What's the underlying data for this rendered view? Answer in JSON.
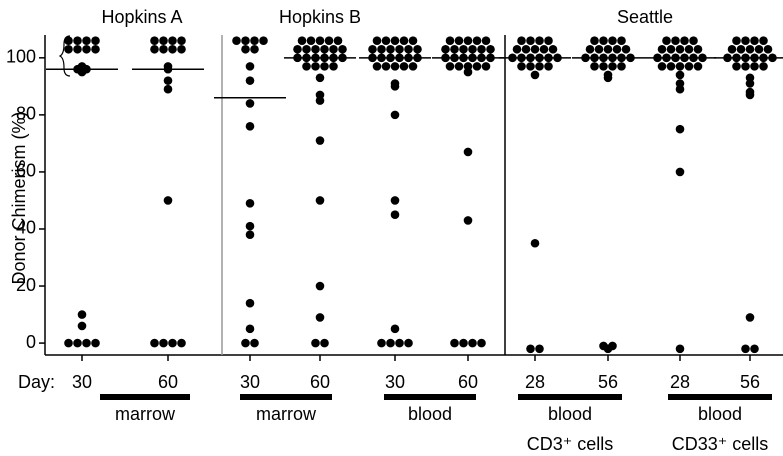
{
  "chart_data": {
    "type": "dot",
    "y_label": "Donor Chimerism (%)",
    "x_label": "Day:",
    "ylim": [
      -4,
      108
    ],
    "yticks": [
      0,
      20,
      40,
      60,
      80,
      100
    ],
    "color": "#000000",
    "groups": [
      {
        "name": "Hopkins A",
        "columns": [
          {
            "day": "30",
            "median": 96,
            "values": [
              106,
              106,
              106,
              106,
              103,
              103,
              103,
              103,
              97,
              96,
              96,
              95,
              10,
              6,
              0,
              0,
              0,
              0
            ]
          },
          {
            "day": "60",
            "median": 96,
            "values": [
              106,
              106,
              106,
              106,
              103,
              103,
              103,
              103,
              97,
              96,
              92,
              89,
              50,
              0,
              0,
              0,
              0
            ]
          }
        ]
      },
      {
        "name": "Hopkins B",
        "columns": [
          {
            "day": "30",
            "median": 86,
            "values": [
              106,
              106,
              106,
              106,
              103,
              103,
              97,
              92,
              84,
              76,
              49,
              41,
              38,
              14,
              5,
              0,
              0
            ]
          },
          {
            "day": "60",
            "median": 100,
            "values": [
              106,
              106,
              106,
              106,
              106,
              103,
              103,
              103,
              103,
              103,
              103,
              100,
              100,
              100,
              100,
              100,
              100,
              97,
              97,
              97,
              97,
              93,
              87,
              85,
              71,
              50,
              20,
              9,
              0,
              0
            ]
          },
          {
            "day": "30",
            "median": 100,
            "values": [
              106,
              106,
              106,
              106,
              106,
              103,
              103,
              103,
              103,
              103,
              103,
              100,
              100,
              100,
              100,
              100,
              100,
              97,
              97,
              97,
              97,
              97,
              91,
              90,
              80,
              50,
              45,
              5,
              0,
              0,
              0,
              0
            ]
          },
          {
            "day": "60",
            "median": 100,
            "values": [
              106,
              106,
              106,
              106,
              106,
              103,
              103,
              103,
              103,
              103,
              103,
              100,
              100,
              100,
              100,
              100,
              100,
              97,
              97,
              97,
              97,
              97,
              95,
              67,
              43,
              0,
              0,
              0,
              0
            ]
          }
        ]
      },
      {
        "name": "Seattle",
        "columns": [
          {
            "day": "28",
            "median": 100,
            "values": [
              106,
              106,
              106,
              106,
              103,
              103,
              103,
              103,
              103,
              100,
              100,
              100,
              100,
              100,
              100,
              97,
              97,
              97,
              97,
              94,
              35,
              -2,
              -2
            ]
          },
          {
            "day": "56",
            "median": 100,
            "values": [
              106,
              106,
              106,
              106,
              103,
              103,
              103,
              103,
              103,
              100,
              100,
              100,
              100,
              100,
              100,
              97,
              97,
              97,
              97,
              94,
              93,
              -1,
              -1,
              -2
            ]
          },
          {
            "day": "28",
            "median": 100,
            "values": [
              106,
              106,
              106,
              106,
              103,
              103,
              103,
              103,
              103,
              100,
              100,
              100,
              100,
              100,
              100,
              97,
              97,
              97,
              97,
              97,
              94,
              91,
              89,
              75,
              60,
              -2
            ]
          },
          {
            "day": "56",
            "median": 100,
            "values": [
              106,
              106,
              106,
              106,
              103,
              103,
              103,
              103,
              103,
              100,
              100,
              100,
              100,
              100,
              100,
              97,
              97,
              97,
              97,
              93,
              91,
              88,
              87,
              9,
              -2,
              -2
            ]
          }
        ]
      }
    ],
    "tissues": [
      {
        "lines": [
          "marrow"
        ]
      },
      {
        "lines": [
          "marrow"
        ]
      },
      {
        "lines": [
          "blood"
        ]
      },
      {
        "lines": [
          "blood",
          "CD3⁺ cells"
        ]
      },
      {
        "lines": [
          "blood",
          "CD33⁺ cells"
        ]
      }
    ]
  }
}
